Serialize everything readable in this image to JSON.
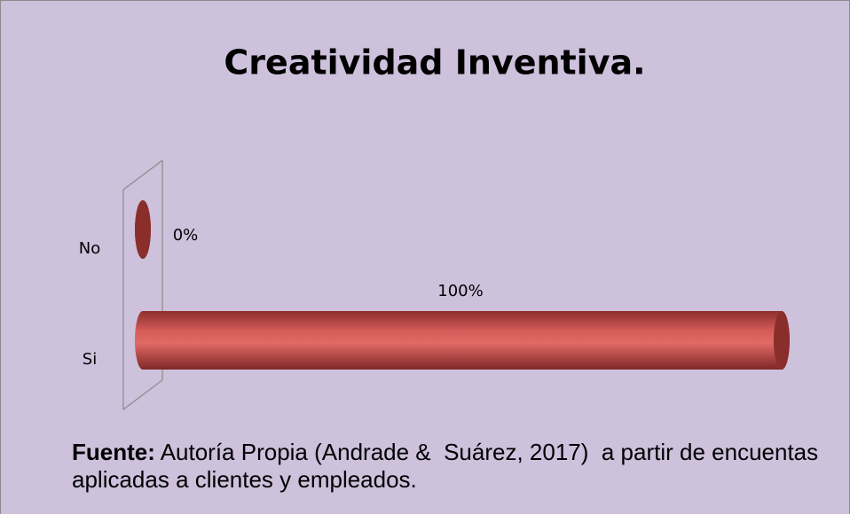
{
  "chart_data": {
    "type": "bar",
    "orientation": "horizontal",
    "title": "Creatividad Inventiva.",
    "categories": [
      "No",
      "Si"
    ],
    "values": [
      0,
      100
    ],
    "value_labels": [
      "0%",
      "100%"
    ],
    "color": "#c0504d",
    "source_label": "Fuente:",
    "source": "Autoría Propia (Andrade &  Suárez, 2017)  a partir de encuentas aplicadas a clientes y empleados."
  }
}
